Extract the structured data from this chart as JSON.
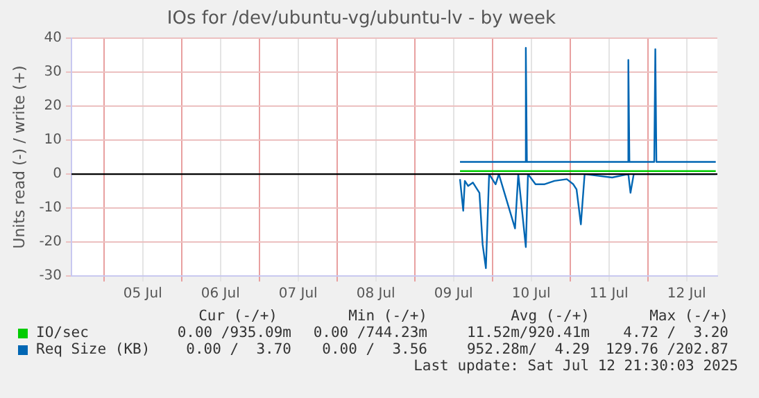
{
  "chart_data": {
    "type": "line",
    "title": "IOs for /dev/ubuntu-vg/ubuntu-lv - by week",
    "ylabel": "Units read (-) / write (+)",
    "xlim": [
      "2025-07-04T14:00",
      "2025-07-12T21:30"
    ],
    "xticks": [
      {
        "value": "2025-07-05T00:00",
        "label": null
      },
      {
        "value": "2025-07-05T12:00",
        "label": "05 Jul"
      },
      {
        "value": "2025-07-06T00:00",
        "label": null
      },
      {
        "value": "2025-07-06T12:00",
        "label": "06 Jul"
      },
      {
        "value": "2025-07-07T00:00",
        "label": null
      },
      {
        "value": "2025-07-07T12:00",
        "label": "07 Jul"
      },
      {
        "value": "2025-07-08T00:00",
        "label": null
      },
      {
        "value": "2025-07-08T12:00",
        "label": "08 Jul"
      },
      {
        "value": "2025-07-09T00:00",
        "label": null
      },
      {
        "value": "2025-07-09T12:00",
        "label": "09 Jul"
      },
      {
        "value": "2025-07-10T00:00",
        "label": null
      },
      {
        "value": "2025-07-10T12:00",
        "label": "10 Jul"
      },
      {
        "value": "2025-07-11T00:00",
        "label": null
      },
      {
        "value": "2025-07-11T12:00",
        "label": "11 Jul"
      },
      {
        "value": "2025-07-12T00:00",
        "label": null
      },
      {
        "value": "2025-07-12T12:00",
        "label": "12 Jul"
      }
    ],
    "ylim": [
      -30,
      40
    ],
    "yticks": [
      -30,
      -20,
      -10,
      0,
      10,
      20,
      30,
      40
    ],
    "grid": true,
    "legend": "bottom",
    "marker": "none",
    "line_style": "solid",
    "ref_lines": [
      {
        "axis": "y",
        "value": 0,
        "color": "#000000"
      }
    ],
    "series": [
      {
        "name": "IO/sec",
        "color": "#00cc00",
        "x": [
          "2025-07-09T14:00",
          "2025-07-10T00:00",
          "2025-07-10T12:00",
          "2025-07-11T00:00",
          "2025-07-11T12:00",
          "2025-07-12T00:00",
          "2025-07-12T21:00"
        ],
        "values": [
          0.9,
          0.9,
          0.9,
          0.9,
          0.9,
          0.9,
          0.9
        ]
      },
      {
        "color": "#0066b3",
        "x": [
          "2025-07-09T14:00",
          "2025-07-09T15:00",
          "2025-07-09T15:30",
          "2025-07-09T16:30",
          "2025-07-09T18:00",
          "2025-07-09T20:00",
          "2025-07-09T21:00",
          "2025-07-09T22:00",
          "2025-07-09T23:00",
          "2025-07-10T01:00",
          "2025-07-10T02:00",
          "2025-07-10T07:00",
          "2025-07-10T08:00",
          "2025-07-10T10:20",
          "2025-07-10T11:00",
          "2025-07-10T13:20",
          "2025-07-10T16:00",
          "2025-07-10T19:10",
          "2025-07-10T23:00",
          "2025-07-11T01:00",
          "2025-07-11T02:00",
          "2025-07-11T03:20",
          "2025-07-11T04:30",
          "2025-07-11T13:00",
          "2025-07-11T18:00",
          "2025-07-11T18:40",
          "2025-07-11T19:40",
          "2025-07-12T21:00"
        ],
        "values": [
          -1.5,
          -10.8,
          -2,
          -3.5,
          -2.5,
          -5.5,
          -20.8,
          -27.7,
          0,
          -3,
          0,
          -16,
          0,
          -21.5,
          0,
          -3,
          -3,
          -2,
          -1.5,
          -3,
          -4.5,
          -14.8,
          0,
          -1,
          0,
          -5.5,
          0,
          0
        ]
      },
      {
        "name": "Req Size (KB)",
        "color": "#0066b3",
        "x": [
          "2025-07-09T14:00",
          "2025-07-10T10:00",
          "2025-07-10T10:20",
          "2025-07-10T10:40",
          "2025-07-11T17:40",
          "2025-07-11T18:00",
          "2025-07-11T18:20",
          "2025-07-12T02:00",
          "2025-07-12T02:20",
          "2025-07-12T02:40",
          "2025-07-12T21:00"
        ],
        "values": [
          3.6,
          3.6,
          37.2,
          3.6,
          3.6,
          33.6,
          3.6,
          3.6,
          36.8,
          3.6,
          3.6
        ]
      }
    ],
    "annotations": [
      "Cur (-/+)",
      "Min (-/+)",
      "Avg (-/+)",
      "Max (-/+)",
      "0.00 /935.09m",
      "0.00 /744.23m",
      "11.52m/920.41m",
      "4.72 /  3.20",
      "0.00 /  3.70",
      "0.00 /  3.56",
      "952.28m/  4.29",
      "129.76 /202.87",
      "Last update: Sat Jul 12 21:30:03 2025"
    ]
  }
}
